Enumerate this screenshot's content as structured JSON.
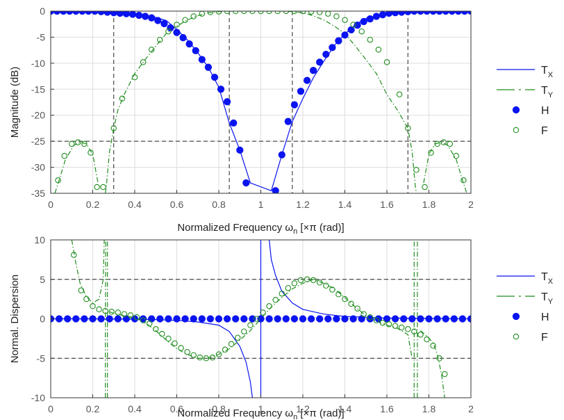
{
  "colors": {
    "blue": "#0a14f0",
    "green": "#1e8c1e",
    "axis": "#333333",
    "tick_text": "#555555"
  },
  "chart_data": [
    {
      "type": "line",
      "ylabel": "Magnitude (dB)",
      "xlabel_parts": [
        "Normalized Frequency ",
        "ω",
        "n",
        "  [×π (rad)]"
      ],
      "xlim": [
        0,
        2
      ],
      "ylim": [
        -35,
        0
      ],
      "xticks": [
        0,
        0.2,
        0.4,
        0.6,
        0.8,
        1,
        1.2,
        1.4,
        1.6,
        1.8,
        2
      ],
      "xtick_labels": [
        "0",
        "0.2",
        "0.4",
        "0.6",
        "0.8",
        "1",
        "1.2",
        "1.4",
        "1.6",
        "1.8",
        "2"
      ],
      "yticks": [
        0,
        -5,
        -10,
        -15,
        -20,
        -25,
        -30,
        -35
      ],
      "ytick_labels": [
        "0",
        "-5",
        "-10",
        "-15",
        "-20",
        "-25",
        "-30",
        "-35"
      ],
      "grid": true,
      "reference_lines": {
        "vertical": [
          0.3,
          0.85,
          1.15,
          1.7
        ],
        "horizontal": [
          -25
        ]
      },
      "legend_position": "right",
      "series": [
        {
          "name": "T",
          "sub": "X",
          "style": "line",
          "x": [
            0,
            0.2,
            0.3,
            0.4,
            0.5,
            0.55,
            0.6,
            0.65,
            0.7,
            0.75,
            0.8,
            0.85,
            0.9,
            0.95,
            1.05,
            1.1,
            1.15,
            1.2,
            1.25,
            1.3,
            1.35,
            1.4,
            1.45,
            1.5,
            1.6,
            1.7,
            1.8,
            2
          ],
          "y": [
            0,
            -0.1,
            -0.3,
            -0.6,
            -1.2,
            -1.8,
            -3.5,
            -5.5,
            -8,
            -10.8,
            -14.6,
            -21.5,
            -26.7,
            -33,
            -34.5,
            -27.6,
            -21.2,
            -16.8,
            -12.8,
            -9.6,
            -6.6,
            -4.4,
            -2.6,
            -1.4,
            -0.5,
            -0.2,
            -0.1,
            0
          ]
        },
        {
          "name": "T",
          "sub": "Y",
          "style": "dashed",
          "segments": [
            {
              "x": [
                0.02,
                0.04,
                0.07,
                0.11,
                0.14,
                0.17,
                0.2,
                0.225
              ],
              "y": [
                -35,
                -32.5,
                -28.5,
                -25.8,
                -25.2,
                -25.5,
                -27.5,
                -33
              ]
            },
            {
              "x": [
                0.26,
                0.265,
                0.28,
                0.3,
                0.32,
                0.35,
                0.4,
                0.45,
                0.5,
                0.55,
                0.6,
                0.65,
                0.7,
                0.75,
                0.8,
                0.85,
                0.9,
                1,
                1.1,
                1.15,
                1.2,
                1.25,
                1.3,
                1.35,
                1.4,
                1.45,
                1.5,
                1.55,
                1.6,
                1.65,
                1.7,
                1.72,
                1.735,
                1.74
              ],
              "y": [
                -35,
                -33.5,
                -27,
                -22.5,
                -19,
                -16,
                -12,
                -9.3,
                -6.7,
                -4.3,
                -2.9,
                -1.7,
                -0.9,
                -0.3,
                -0.1,
                0,
                0,
                0,
                0,
                -0.1,
                -0.3,
                -0.9,
                -1.7,
                -2.9,
                -4.3,
                -6.7,
                -9.3,
                -12,
                -16,
                -19,
                -22.5,
                -27,
                -33.5,
                -35
              ]
            },
            {
              "x": [
                1.775,
                1.8,
                1.83,
                1.86,
                1.89,
                1.93,
                1.96,
                1.98
              ],
              "y": [
                -33,
                -27.5,
                -25.5,
                -25.2,
                -25.8,
                -28.5,
                -32.5,
                -35
              ]
            }
          ]
        },
        {
          "name": "H",
          "style": "filled-marker",
          "x": [
            0,
            0.03,
            0.06,
            0.09,
            0.12,
            0.15,
            0.18,
            0.21,
            0.24,
            0.27,
            0.3,
            0.33,
            0.36,
            0.39,
            0.42,
            0.45,
            0.48,
            0.51,
            0.54,
            0.57,
            0.6,
            0.63,
            0.66,
            0.69,
            0.72,
            0.75,
            0.78,
            0.81,
            0.84,
            0.87,
            0.9,
            0.93,
            1.07,
            1.1,
            1.13,
            1.16,
            1.19,
            1.22,
            1.25,
            1.28,
            1.31,
            1.34,
            1.37,
            1.4,
            1.43,
            1.46,
            1.49,
            1.52,
            1.55,
            1.58,
            1.61,
            1.64,
            1.67,
            1.7,
            1.73,
            1.76,
            1.79,
            1.82,
            1.85,
            1.88,
            1.91,
            1.94,
            1.97,
            2
          ],
          "y": [
            0,
            0,
            0,
            0,
            0,
            0,
            0,
            0,
            -0.1,
            -0.2,
            -0.3,
            -0.4,
            -0.5,
            -0.6,
            -0.8,
            -1,
            -1.3,
            -1.8,
            -2.4,
            -3.2,
            -4.1,
            -5.1,
            -6.3,
            -7.6,
            -9.3,
            -10.8,
            -12.7,
            -15,
            -17.4,
            -21.5,
            -26.7,
            -33,
            -34.5,
            -27.6,
            -21.2,
            -18,
            -15.4,
            -13.3,
            -11.4,
            -9.8,
            -8.3,
            -7,
            -5.7,
            -4.6,
            -3.6,
            -2.7,
            -2,
            -1.5,
            -1,
            -0.7,
            -0.4,
            -0.3,
            -0.2,
            -0.1,
            0,
            0,
            0,
            0,
            0,
            0,
            0,
            0,
            0,
            0
          ]
        },
        {
          "name": "F",
          "style": "open-marker",
          "x": [
            0.035,
            0.065,
            0.1,
            0.13,
            0.16,
            0.19,
            0.22,
            0.25,
            0.3,
            0.34,
            0.4,
            0.44,
            0.48,
            0.52,
            0.56,
            0.6,
            0.64,
            0.68,
            0.72,
            0.76,
            0.8,
            0.84,
            0.88,
            0.92,
            0.96,
            1,
            1.04,
            1.08,
            1.12,
            1.16,
            1.2,
            1.24,
            1.28,
            1.32,
            1.36,
            1.4,
            1.44,
            1.48,
            1.52,
            1.56,
            1.6,
            1.66,
            1.7,
            1.74,
            1.78,
            1.81,
            1.84,
            1.87,
            1.9,
            1.93,
            1.965
          ],
          "y": [
            -32.5,
            -27.8,
            -25.5,
            -25.2,
            -25.5,
            -27.2,
            -33.8,
            -33.8,
            -22.5,
            -16.8,
            -12.7,
            -9.8,
            -7.4,
            -5.5,
            -3.9,
            -2.6,
            -1.7,
            -1,
            -0.5,
            -0.2,
            -0.1,
            0,
            0,
            0,
            0,
            0,
            0,
            0,
            0,
            0,
            0,
            -0.1,
            -0.2,
            -0.5,
            -1,
            -1.7,
            -2.6,
            -3.9,
            -5.5,
            -7.4,
            -9.8,
            -16,
            -22.5,
            -30.5,
            -33.8,
            -27.2,
            -25.5,
            -25.2,
            -25.5,
            -27.8,
            -32.5
          ]
        }
      ]
    },
    {
      "type": "line",
      "ylabel": "Normal. Dispersion",
      "xlabel_parts": [
        "Normalized Frequency ",
        "ω",
        "n",
        "  [×π (rad)]"
      ],
      "xlim": [
        0,
        2
      ],
      "ylim": [
        -10,
        10
      ],
      "xticks": [
        0,
        0.2,
        0.4,
        0.6,
        0.8,
        1,
        1.2,
        1.4,
        1.6,
        1.8,
        2
      ],
      "xtick_labels": [
        "0",
        "0.2",
        "0.4",
        "0.6",
        "0.8",
        "1",
        "1.2",
        "1.4",
        "1.6",
        "1.8",
        "2"
      ],
      "yticks": [
        10,
        5,
        0,
        -5,
        -10
      ],
      "ytick_labels": [
        "10",
        "5",
        "0",
        "-5",
        "-10"
      ],
      "grid": true,
      "reference_lines": {
        "vertical": [],
        "horizontal": [
          5,
          -5
        ]
      },
      "legend_position": "right",
      "series": [
        {
          "name": "T",
          "sub": "X",
          "style": "line",
          "segments": [
            {
              "x": [
                0,
                0.2,
                0.4,
                0.5,
                0.6,
                0.7,
                0.8,
                0.85,
                0.9,
                0.93,
                0.95,
                0.96
              ],
              "y": [
                0,
                0,
                -0.05,
                -0.1,
                -0.2,
                -0.4,
                -0.8,
                -1.6,
                -3.5,
                -5.5,
                -8,
                -10
              ]
            },
            {
              "x": [
                1,
                1
              ],
              "y": [
                -10,
                10
              ]
            },
            {
              "x": [
                1.04,
                1.05,
                1.07,
                1.1,
                1.15,
                1.2,
                1.3,
                1.4,
                1.5,
                1.6,
                1.8,
                2
              ],
              "y": [
                10,
                7.5,
                5.5,
                3.5,
                2,
                1.2,
                0.6,
                0.3,
                0.2,
                0.1,
                0.05,
                0
              ]
            }
          ]
        },
        {
          "name": "T",
          "sub": "Y",
          "style": "dashed",
          "segments": [
            {
              "x": [
                0.1,
                0.12,
                0.14,
                0.17,
                0.2,
                0.23,
                0.25,
                0.255
              ],
              "y": [
                10,
                7,
                4.5,
                2.8,
                2,
                2.5,
                5,
                10
              ]
            },
            {
              "x": [
                0.26,
                0.26,
                0.262
              ],
              "y": [
                -10,
                -2,
                10
              ]
            },
            {
              "x": [
                0.27,
                0.27
              ],
              "y": [
                -10,
                10
              ]
            },
            {
              "x": [
                0.28,
                0.3,
                0.35,
                0.4,
                0.45,
                0.5,
                0.55,
                0.6,
                0.65,
                0.7,
                0.75,
                0.8,
                0.85,
                0.9,
                0.95,
                1,
                1.05,
                1.1,
                1.15,
                1.2,
                1.25,
                1.3,
                1.35,
                1.4,
                1.45,
                1.5,
                1.55,
                1.6,
                1.65,
                1.7,
                1.72
              ],
              "y": [
                0.9,
                0.7,
                0.4,
                0.15,
                -0.5,
                -1.5,
                -2.7,
                -3.8,
                -4.5,
                -5,
                -5,
                -4.5,
                -3.8,
                -2.7,
                -1.5,
                0,
                1.5,
                2.7,
                3.8,
                4.5,
                5,
                4.5,
                3.8,
                2.7,
                1.5,
                0.4,
                -0.3,
                -0.8,
                -1.2,
                -2,
                -5
              ]
            },
            {
              "x": [
                1.73,
                1.73
              ],
              "y": [
                -10,
                10
              ]
            },
            {
              "x": [
                1.745,
                1.745
              ],
              "y": [
                -10,
                10
              ]
            },
            {
              "x": [
                1.76,
                1.79,
                1.82,
                1.84,
                1.86,
                1.875
              ],
              "y": [
                -1.5,
                -2.2,
                -3,
                -4.5,
                -7,
                -10
              ]
            }
          ]
        },
        {
          "name": "H",
          "style": "filled-marker",
          "x": [
            0,
            0.04,
            0.08,
            0.12,
            0.16,
            0.2,
            0.24,
            0.28,
            0.32,
            0.36,
            0.4,
            0.44,
            0.48,
            0.52,
            0.56,
            0.6,
            0.64,
            0.68,
            0.72,
            0.76,
            0.8,
            0.84,
            0.88,
            0.92,
            0.96,
            1,
            1.04,
            1.08,
            1.12,
            1.16,
            1.2,
            1.24,
            1.28,
            1.32,
            1.36,
            1.4,
            1.44,
            1.48,
            1.52,
            1.56,
            1.6,
            1.64,
            1.68,
            1.72,
            1.76,
            1.8,
            1.84,
            1.88,
            1.92,
            1.96,
            2
          ],
          "y": [
            0,
            0,
            0,
            0,
            0,
            0,
            0,
            0,
            0,
            0,
            0,
            0,
            0,
            0,
            0,
            0,
            0,
            0,
            0,
            0,
            0,
            0,
            0,
            0,
            0,
            0,
            0,
            0,
            0,
            0,
            0,
            0,
            0,
            0,
            0,
            0,
            0,
            0,
            0,
            0,
            0,
            0,
            0,
            0,
            0,
            0,
            0,
            0,
            0,
            0,
            0
          ]
        },
        {
          "name": "F",
          "style": "open-marker",
          "x": [
            0.11,
            0.145,
            0.17,
            0.2,
            0.23,
            0.26,
            0.29,
            0.32,
            0.35,
            0.38,
            0.41,
            0.44,
            0.47,
            0.5,
            0.53,
            0.56,
            0.59,
            0.62,
            0.65,
            0.68,
            0.71,
            0.74,
            0.77,
            0.8,
            0.83,
            0.86,
            0.89,
            0.92,
            0.95,
            0.98,
            1.01,
            1.04,
            1.07,
            1.1,
            1.13,
            1.16,
            1.19,
            1.22,
            1.25,
            1.28,
            1.31,
            1.34,
            1.37,
            1.4,
            1.43,
            1.46,
            1.49,
            1.52,
            1.55,
            1.58,
            1.61,
            1.64,
            1.67,
            1.7,
            1.73,
            1.76,
            1.79,
            1.82,
            1.85,
            1.875
          ],
          "y": [
            8.1,
            3.6,
            2.5,
            1.6,
            1.2,
            1,
            0.9,
            0.8,
            0.6,
            0.45,
            0.2,
            -0.2,
            -0.6,
            -1.3,
            -1.9,
            -2.5,
            -3.1,
            -3.7,
            -4.2,
            -4.6,
            -4.9,
            -5,
            -4.9,
            -4.5,
            -3.9,
            -3.2,
            -2.4,
            -1.6,
            -0.8,
            0,
            0.8,
            1.6,
            2.4,
            3.2,
            3.9,
            4.5,
            4.9,
            5,
            4.9,
            4.6,
            4.2,
            3.7,
            3.1,
            2.5,
            1.9,
            1.3,
            0.6,
            0.2,
            -0.2,
            -0.5,
            -0.7,
            -0.9,
            -1.1,
            -1.3,
            -1.6,
            -2,
            -2.6,
            -3.4,
            -5,
            -7
          ]
        }
      ]
    }
  ]
}
